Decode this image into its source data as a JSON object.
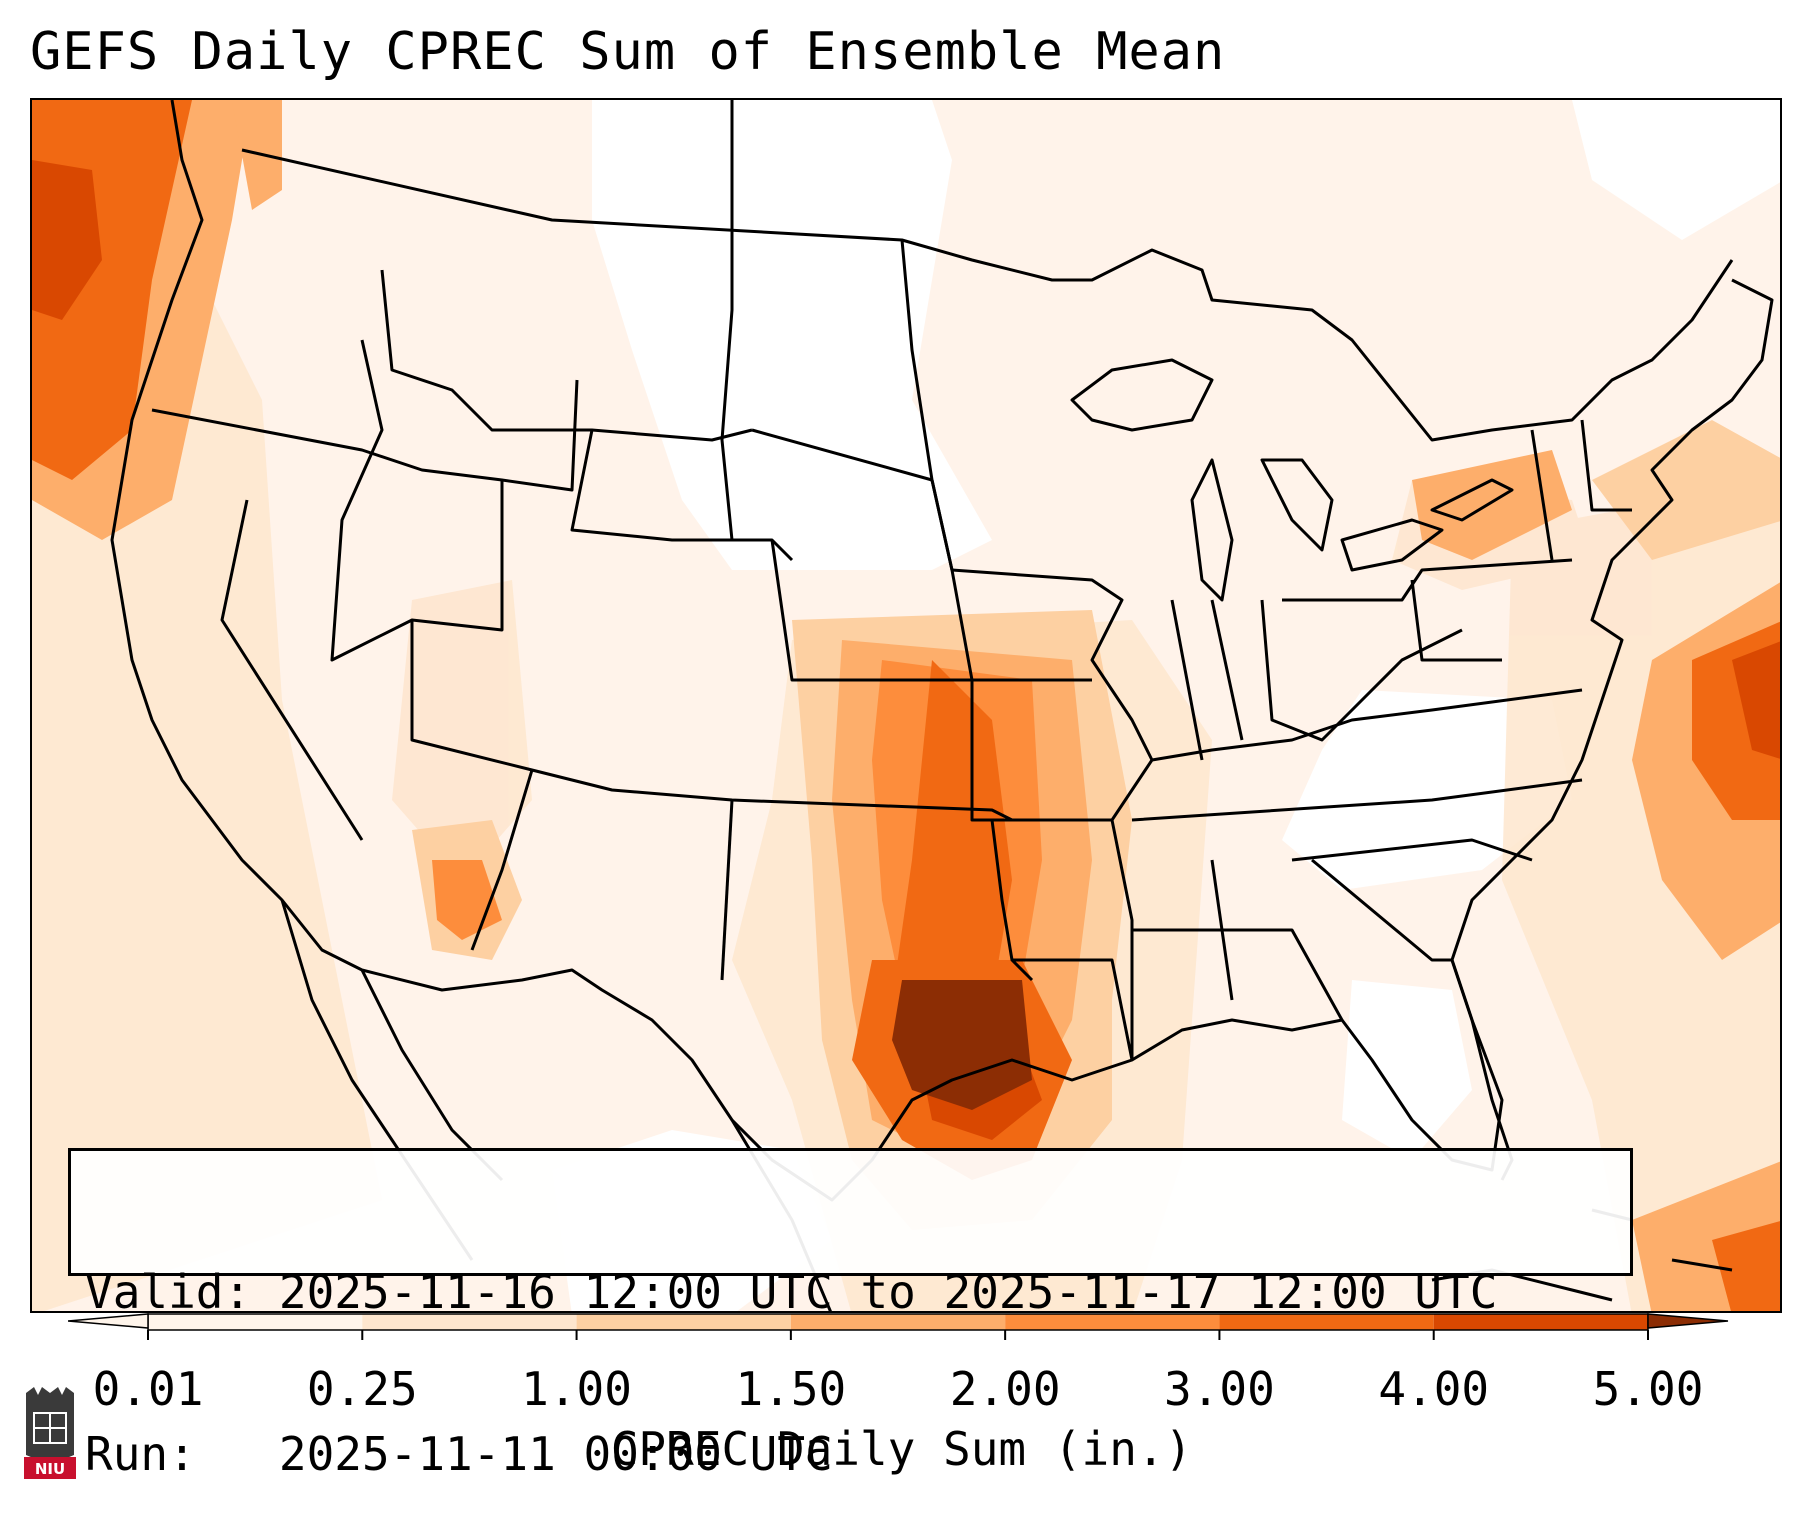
{
  "title": "GEFS Daily CPREC Sum of Ensemble Mean",
  "info": {
    "valid_label": "Valid:",
    "valid_value": "2025-11-16 12:00 UTC to 2025-11-17 12:00 UTC",
    "run_label": "Run:",
    "run_value": "2025-11-11 00:00 UTC"
  },
  "colorbar": {
    "ticks": [
      "0.01",
      "0.25",
      "1.00",
      "1.50",
      "2.00",
      "3.00",
      "4.00",
      "5.00"
    ],
    "colors": [
      "#fff5eb",
      "#fee6ce",
      "#fdd0a2",
      "#fdae6b",
      "#fd8d3c",
      "#f16913",
      "#d94801",
      "#8c2d04"
    ],
    "label": "CPREC Daily Sum (in.)"
  },
  "logo": {
    "text": "NIU"
  }
}
